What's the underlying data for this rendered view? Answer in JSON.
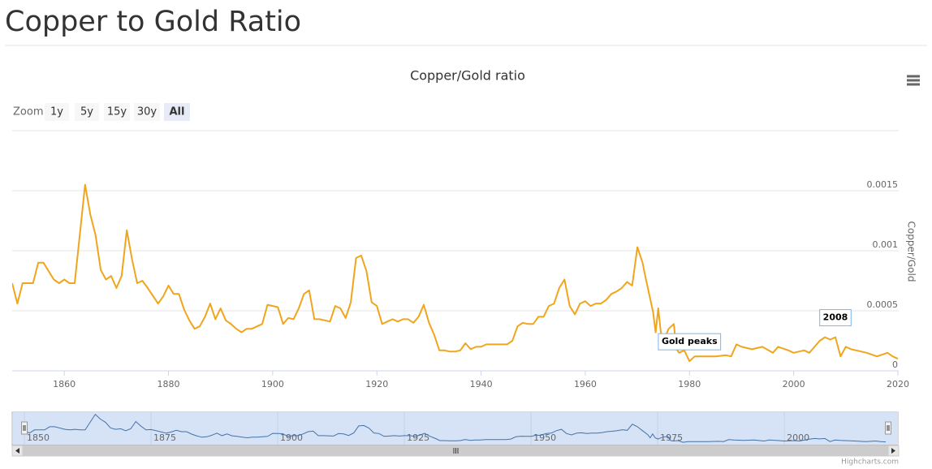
{
  "heading": "Copper to Gold Ratio",
  "range_selector": {
    "label": "Zoom",
    "buttons": [
      "1y",
      "5y",
      "15y",
      "30y",
      "All"
    ],
    "selected": 4
  },
  "credits": "Highcharts.com",
  "chart_data": {
    "type": "line",
    "title": "Copper/Gold ratio",
    "ylabel": "Copper/Gold",
    "color": "#f0a51c",
    "x": [
      1850,
      1851,
      1852,
      1854,
      1855,
      1856,
      1858,
      1859,
      1860,
      1861,
      1862,
      1864,
      1865,
      1866,
      1867,
      1868,
      1869,
      1870,
      1871,
      1872,
      1873,
      1874,
      1875,
      1876,
      1878,
      1879,
      1880,
      1881,
      1882,
      1883,
      1884,
      1885,
      1886,
      1887,
      1888,
      1889,
      1890,
      1891,
      1892,
      1893,
      1894,
      1895,
      1896,
      1897,
      1898,
      1899,
      1900,
      1901,
      1902,
      1903,
      1904,
      1905,
      1906,
      1907,
      1908,
      1909,
      1910,
      1911,
      1912,
      1913,
      1914,
      1915,
      1916,
      1917,
      1918,
      1919,
      1920,
      1921,
      1922,
      1923,
      1924,
      1925,
      1926,
      1927,
      1928,
      1929,
      1930,
      1931,
      1932,
      1933,
      1934,
      1935,
      1936,
      1937,
      1938,
      1939,
      1940,
      1941,
      1943,
      1945,
      1946,
      1947,
      1948,
      1949,
      1950,
      1951,
      1952,
      1953,
      1954,
      1955,
      1956,
      1957,
      1958,
      1959,
      1960,
      1961,
      1962,
      1963,
      1964,
      1965,
      1966,
      1967,
      1968,
      1969,
      1970,
      1971,
      1971.5,
      1972,
      1973,
      1973.5,
      1974,
      1974.5,
      1975,
      1976,
      1977,
      1977.5,
      1978,
      1979,
      1980,
      1981,
      1983,
      1985,
      1987,
      1988,
      1989,
      1990,
      1992,
      1994,
      1996,
      1997,
      1999,
      2000,
      2002,
      2003,
      2004,
      2005,
      2006,
      2007,
      2008,
      2009,
      2010,
      2011,
      2012,
      2014,
      2016,
      2018,
      2019,
      2020
    ],
    "values": [
      0.00073,
      0.00056,
      0.00073,
      0.00073,
      0.0009,
      0.0009,
      0.00076,
      0.00073,
      0.00076,
      0.00073,
      0.00073,
      0.00155,
      0.0013,
      0.00113,
      0.00084,
      0.00076,
      0.00079,
      0.00069,
      0.00079,
      0.00117,
      0.00093,
      0.00073,
      0.00075,
      0.00069,
      0.00056,
      0.00062,
      0.00071,
      0.00064,
      0.00064,
      0.00051,
      0.00042,
      0.00035,
      0.00037,
      0.00045,
      0.00056,
      0.00043,
      0.00052,
      0.00042,
      0.00039,
      0.00035,
      0.00032,
      0.00035,
      0.00035,
      0.00037,
      0.00039,
      0.00055,
      0.00054,
      0.00053,
      0.00039,
      0.00044,
      0.00043,
      0.00052,
      0.00064,
      0.00067,
      0.00043,
      0.00043,
      0.00042,
      0.00041,
      0.00054,
      0.00052,
      0.00044,
      0.00057,
      0.00094,
      0.00096,
      0.00083,
      0.00057,
      0.00054,
      0.00039,
      0.00041,
      0.00043,
      0.00041,
      0.00043,
      0.00043,
      0.0004,
      0.00045,
      0.00055,
      0.0004,
      0.0003,
      0.00017,
      0.00017,
      0.00016,
      0.00016,
      0.00017,
      0.00023,
      0.00018,
      0.0002,
      0.0002,
      0.00022,
      0.00022,
      0.00022,
      0.00025,
      0.00037,
      0.0004,
      0.00039,
      0.00039,
      0.00045,
      0.00045,
      0.00054,
      0.00056,
      0.00069,
      0.00076,
      0.00054,
      0.00047,
      0.00056,
      0.00058,
      0.00054,
      0.00056,
      0.00056,
      0.00059,
      0.00064,
      0.00066,
      0.00069,
      0.00074,
      0.00071,
      0.00103,
      0.0009,
      0.00079,
      0.00069,
      0.00049,
      0.00032,
      0.00052,
      0.00032,
      0.00025,
      0.00035,
      0.00039,
      0.00018,
      0.00015,
      0.00017,
      8e-05,
      0.00012,
      0.00012,
      0.00012,
      0.00013,
      0.00012,
      0.00022,
      0.0002,
      0.00018,
      0.0002,
      0.00015,
      0.0002,
      0.00017,
      0.00015,
      0.00017,
      0.00015,
      0.0002,
      0.00025,
      0.00028,
      0.00026,
      0.00028,
      0.00012,
      0.0002,
      0.00018,
      0.00017,
      0.00015,
      0.00012,
      0.00015,
      0.00012,
      0.0001
    ],
    "xlim": [
      1850,
      2020
    ],
    "xticks": [
      1860,
      1880,
      1900,
      1920,
      1940,
      1960,
      1980,
      2000,
      2020
    ],
    "ylim": [
      0,
      0.002
    ],
    "yticks": [
      0,
      0.0005,
      0.001,
      0.0015
    ],
    "grid": true,
    "annotations": [
      {
        "x": 1980,
        "text": "Gold peaks"
      },
      {
        "x": 2008,
        "text": "2008"
      }
    ],
    "navigator": {
      "color": "#4572a7",
      "xticks": [
        1850,
        1875,
        1900,
        1925,
        1950,
        1975,
        2000
      ]
    }
  }
}
